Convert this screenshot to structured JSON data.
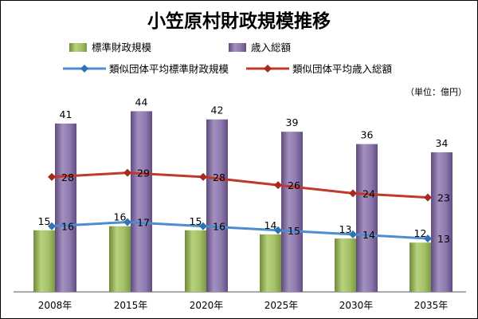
{
  "chart_data": {
    "type": "bar",
    "title": "小笠原村財政規模推移",
    "unit": "（単位：億円）",
    "categories": [
      "2008年",
      "2015年",
      "2020年",
      "2025年",
      "2030年",
      "2035年"
    ],
    "series": [
      {
        "name": "標準財政規模",
        "kind": "bar",
        "values": [
          15,
          16,
          15,
          14,
          13,
          12
        ],
        "color": "#9cbb5e"
      },
      {
        "name": "歳入総額",
        "kind": "bar",
        "values": [
          41,
          44,
          42,
          39,
          36,
          34
        ],
        "color": "#7d659e"
      },
      {
        "name": "類似団体平均標準財政規模",
        "kind": "line",
        "values": [
          16,
          17,
          16,
          15,
          14,
          13
        ],
        "color": "#4a8ed0"
      },
      {
        "name": "類似団体平均歳入総額",
        "kind": "line",
        "values": [
          28,
          29,
          28,
          26,
          24,
          23
        ],
        "color": "#c0392b"
      }
    ],
    "ylim": [
      0,
      47
    ],
    "legend_position": "top",
    "grid": false
  }
}
